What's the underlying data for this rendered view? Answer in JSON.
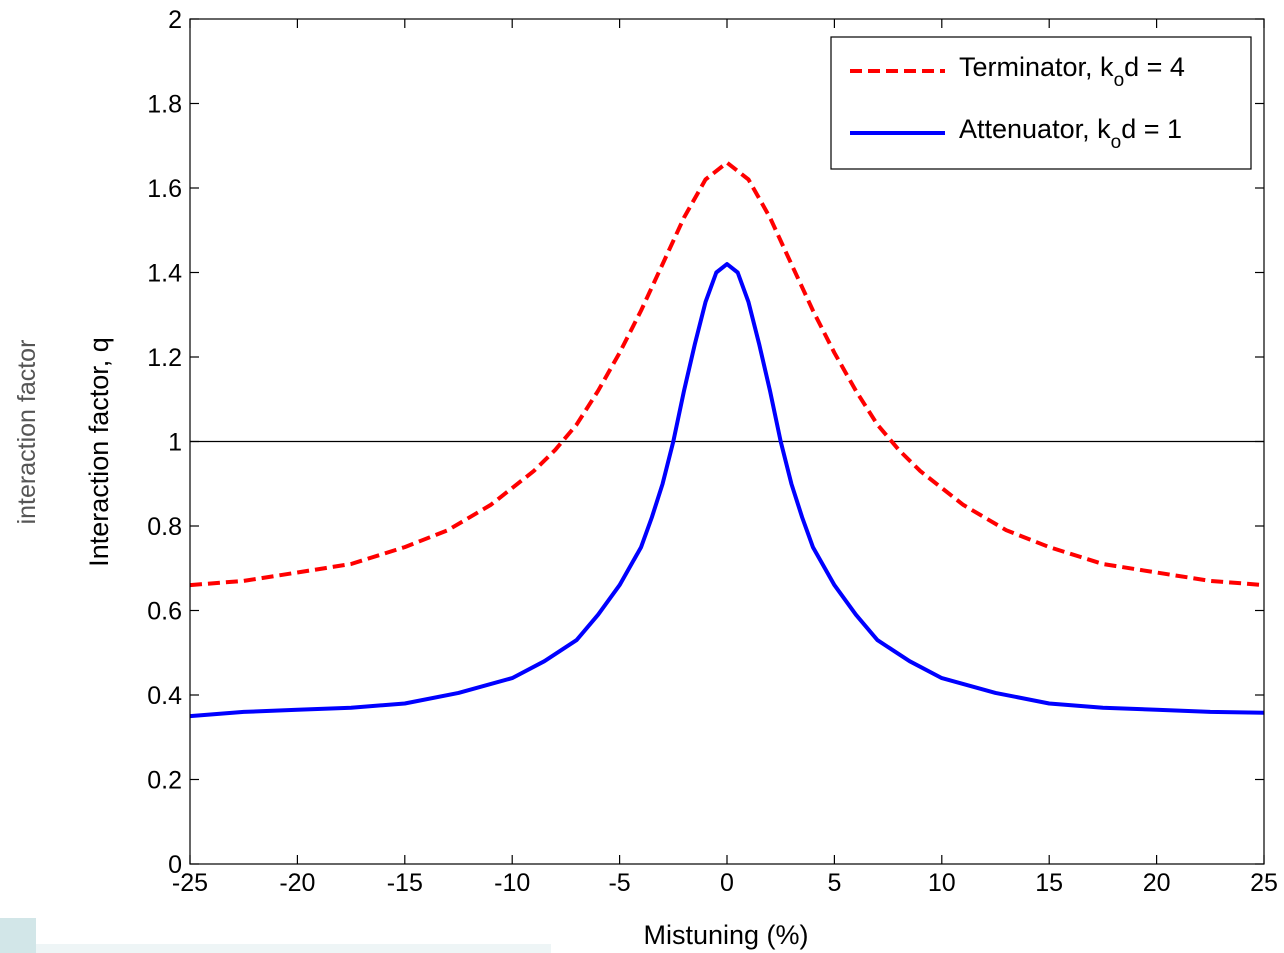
{
  "side_label": "interaction factor",
  "chart_data": {
    "type": "line",
    "xlabel": "Mistuning (%)",
    "ylabel": "Interaction factor, q",
    "xlim": [
      -25,
      25
    ],
    "ylim": [
      0,
      2
    ],
    "xticks": [
      -25,
      -20,
      -15,
      -10,
      -5,
      0,
      5,
      10,
      15,
      20,
      25
    ],
    "yticks": [
      0,
      0.2,
      0.4,
      0.6,
      0.8,
      1,
      1.2,
      1.4,
      1.6,
      1.8,
      2
    ],
    "ytick_labels": [
      "0",
      "0.2",
      "0.4",
      "0.6",
      "0.8",
      "1",
      "1.2",
      "1.4",
      "1.6",
      "1.8",
      "2"
    ],
    "reference_line": {
      "y": 1,
      "color": "#000000"
    },
    "grid": false,
    "legend_position": "top-right",
    "series": [
      {
        "label": "Terminator, k",
        "subscript": "o",
        "label_suffix": "d = 4",
        "color": "#ff0000",
        "style": "dashed",
        "x": [
          -25,
          -22.5,
          -20,
          -17.5,
          -15,
          -13,
          -11,
          -9,
          -8,
          -7,
          -6,
          -5,
          -4,
          -3,
          -2,
          -1,
          0,
          1,
          2,
          3,
          4,
          5,
          6,
          7,
          8,
          9,
          11,
          13,
          15,
          17.5,
          20,
          22.5,
          25
        ],
        "y": [
          0.66,
          0.67,
          0.69,
          0.71,
          0.75,
          0.79,
          0.85,
          0.93,
          0.98,
          1.04,
          1.12,
          1.21,
          1.31,
          1.42,
          1.53,
          1.62,
          1.66,
          1.62,
          1.53,
          1.42,
          1.31,
          1.21,
          1.12,
          1.04,
          0.98,
          0.93,
          0.85,
          0.79,
          0.75,
          0.71,
          0.69,
          0.67,
          0.66
        ]
      },
      {
        "label": "Attenuator, k",
        "subscript": "o",
        "label_suffix": "d = 1",
        "color": "#0000ff",
        "style": "solid",
        "x": [
          -25,
          -22.5,
          -20,
          -17.5,
          -15,
          -12.5,
          -10,
          -8.5,
          -7,
          -6,
          -5,
          -4,
          -3.5,
          -3,
          -2.5,
          -2,
          -1.5,
          -1,
          -0.5,
          0,
          0.5,
          1,
          1.5,
          2,
          2.5,
          3,
          3.5,
          4,
          5,
          6,
          7,
          8.5,
          10,
          12.5,
          15,
          17.5,
          20,
          22.5,
          25
        ],
        "y": [
          0.35,
          0.36,
          0.365,
          0.37,
          0.38,
          0.405,
          0.44,
          0.48,
          0.53,
          0.59,
          0.66,
          0.75,
          0.82,
          0.9,
          1.0,
          1.12,
          1.23,
          1.33,
          1.4,
          1.42,
          1.4,
          1.33,
          1.23,
          1.12,
          1.0,
          0.9,
          0.82,
          0.75,
          0.66,
          0.59,
          0.53,
          0.48,
          0.44,
          0.405,
          0.38,
          0.37,
          0.365,
          0.36,
          0.358
        ]
      }
    ]
  }
}
